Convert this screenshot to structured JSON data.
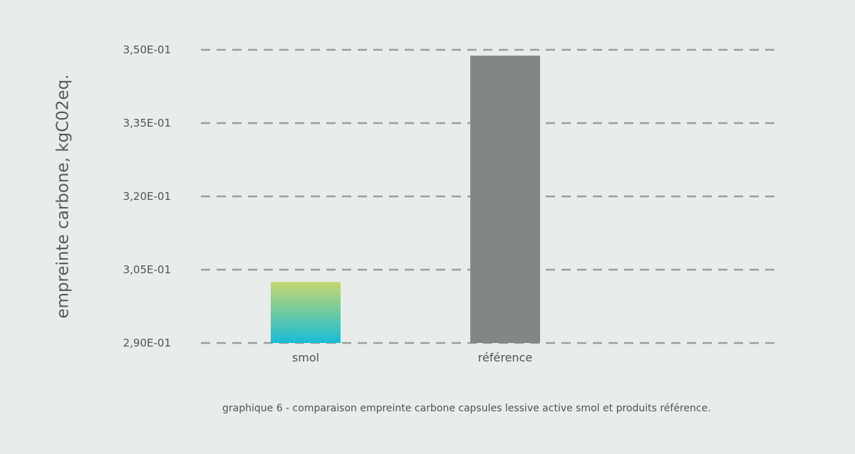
{
  "chart_data": {
    "type": "bar",
    "categories": [
      "smol",
      "référence"
    ],
    "values": [
      0.3025,
      0.3488
    ],
    "xlabel": "",
    "ylabel": "empreinte carbone, kgC02eq.",
    "ylim": [
      0.29,
      0.35
    ],
    "yticks": [
      0.29,
      0.305,
      0.32,
      0.335,
      0.35
    ],
    "ytick_labels": [
      "2,90E-01",
      "3,05E-01",
      "3,20E-01",
      "3,35E-01",
      "3,50E-01"
    ],
    "grid": true,
    "grid_style": "dashed",
    "bar_colors": [
      {
        "gradient_top": "#c6d86e",
        "gradient_bottom": "#18bcd6"
      },
      {
        "solid": "#818784"
      }
    ]
  },
  "caption": "graphique 6 - comparaison empreinte carbone capsules lessive active smol et produits référence."
}
